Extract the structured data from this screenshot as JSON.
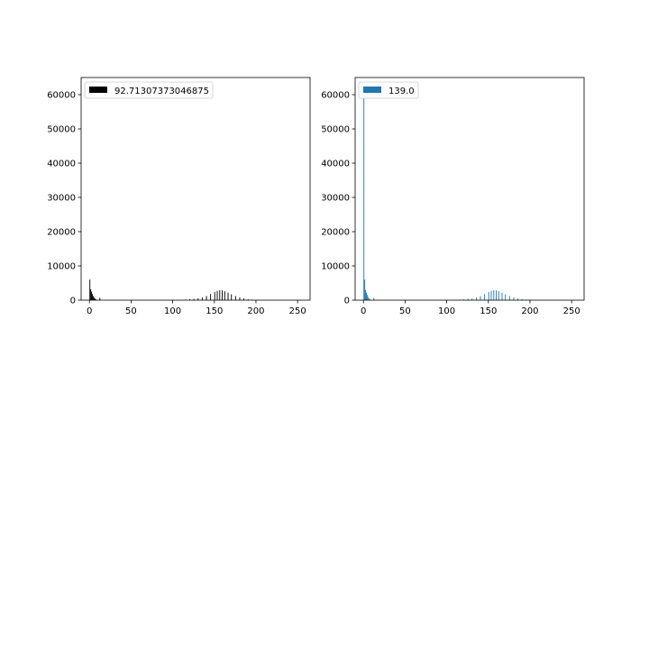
{
  "chart_data": [
    {
      "type": "bar",
      "subtype": "histogram",
      "legend": {
        "label": "92.71307373046875",
        "placement": "upper-left"
      },
      "color": "#000000",
      "xlim": [
        -10,
        265
      ],
      "ylim": [
        0,
        65000
      ],
      "x_ticks": [
        0,
        50,
        100,
        150,
        200,
        250
      ],
      "y_ticks": [
        0,
        10000,
        20000,
        30000,
        40000,
        50000,
        60000
      ],
      "grid": false,
      "bins": [
        {
          "x": 0,
          "y": 6000
        },
        {
          "x": 1,
          "y": 3200
        },
        {
          "x": 2,
          "y": 2500
        },
        {
          "x": 3,
          "y": 1800
        },
        {
          "x": 4,
          "y": 1200
        },
        {
          "x": 5,
          "y": 800
        },
        {
          "x": 6,
          "y": 500
        },
        {
          "x": 7,
          "y": 300
        },
        {
          "x": 12,
          "y": 700
        },
        {
          "x": 110,
          "y": 100
        },
        {
          "x": 115,
          "y": 180
        },
        {
          "x": 120,
          "y": 250
        },
        {
          "x": 125,
          "y": 380
        },
        {
          "x": 130,
          "y": 550
        },
        {
          "x": 135,
          "y": 800
        },
        {
          "x": 140,
          "y": 1200
        },
        {
          "x": 145,
          "y": 1800
        },
        {
          "x": 150,
          "y": 2400
        },
        {
          "x": 153,
          "y": 2700
        },
        {
          "x": 156,
          "y": 2900
        },
        {
          "x": 159,
          "y": 2850
        },
        {
          "x": 162,
          "y": 2600
        },
        {
          "x": 166,
          "y": 2200
        },
        {
          "x": 170,
          "y": 1700
        },
        {
          "x": 175,
          "y": 1200
        },
        {
          "x": 180,
          "y": 800
        },
        {
          "x": 185,
          "y": 500
        },
        {
          "x": 190,
          "y": 300
        },
        {
          "x": 195,
          "y": 150
        },
        {
          "x": 200,
          "y": 60
        }
      ]
    },
    {
      "type": "bar",
      "subtype": "histogram",
      "legend": {
        "label": "139.0",
        "placement": "upper-left"
      },
      "color": "#1f77b4",
      "xlim": [
        -10,
        265
      ],
      "ylim": [
        0,
        65000
      ],
      "x_ticks": [
        0,
        50,
        100,
        150,
        200,
        250
      ],
      "y_ticks": [
        0,
        10000,
        20000,
        30000,
        40000,
        50000,
        60000
      ],
      "grid": false,
      "bins": [
        {
          "x": 0,
          "y": 60000
        },
        {
          "x": 1,
          "y": 6000
        },
        {
          "x": 2,
          "y": 3000
        },
        {
          "x": 3,
          "y": 2200
        },
        {
          "x": 4,
          "y": 1500
        },
        {
          "x": 5,
          "y": 900
        },
        {
          "x": 6,
          "y": 500
        },
        {
          "x": 7,
          "y": 300
        },
        {
          "x": 12,
          "y": 700
        },
        {
          "x": 110,
          "y": 100
        },
        {
          "x": 115,
          "y": 180
        },
        {
          "x": 120,
          "y": 250
        },
        {
          "x": 125,
          "y": 380
        },
        {
          "x": 130,
          "y": 550
        },
        {
          "x": 135,
          "y": 800
        },
        {
          "x": 140,
          "y": 1200
        },
        {
          "x": 145,
          "y": 1800
        },
        {
          "x": 150,
          "y": 2400
        },
        {
          "x": 153,
          "y": 2700
        },
        {
          "x": 156,
          "y": 2900
        },
        {
          "x": 159,
          "y": 2850
        },
        {
          "x": 162,
          "y": 2600
        },
        {
          "x": 166,
          "y": 2200
        },
        {
          "x": 170,
          "y": 1700
        },
        {
          "x": 175,
          "y": 1200
        },
        {
          "x": 180,
          "y": 800
        },
        {
          "x": 185,
          "y": 500
        },
        {
          "x": 190,
          "y": 300
        },
        {
          "x": 195,
          "y": 150
        },
        {
          "x": 200,
          "y": 60
        }
      ]
    }
  ]
}
